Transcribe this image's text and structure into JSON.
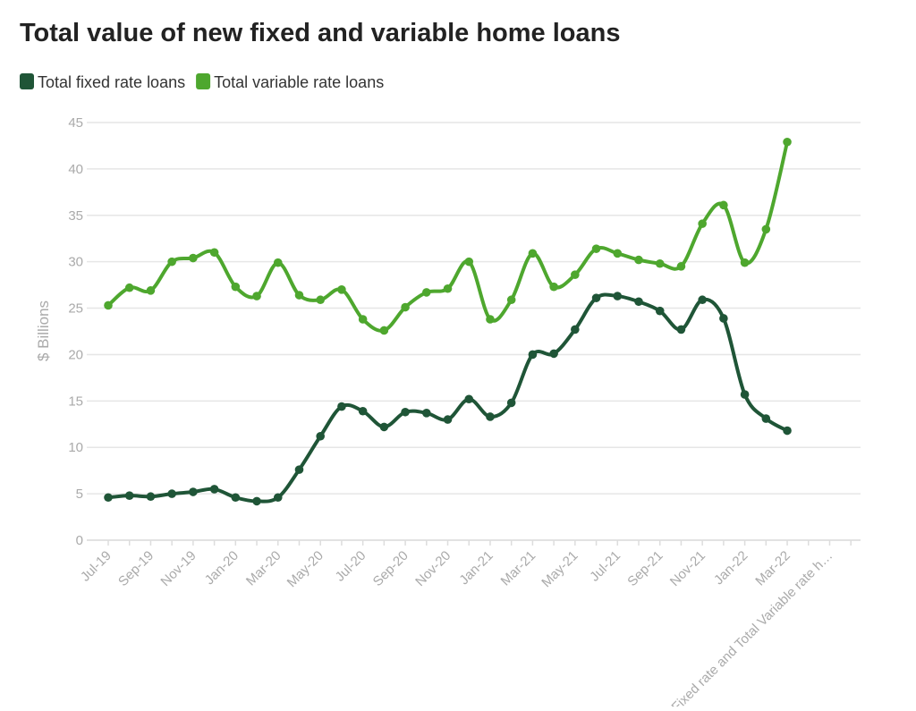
{
  "chart_data": {
    "type": "line",
    "title": "Total value of new fixed and variable home loans",
    "y_label": "$ Billions",
    "categories": [
      "Jul-19",
      null,
      "Sep-19",
      null,
      "Nov-19",
      null,
      "Jan-20",
      null,
      "Mar-20",
      null,
      "May-20",
      null,
      "Jul-20",
      null,
      "Sep-20",
      null,
      "Nov-20",
      null,
      "Jan-21",
      null,
      "Mar-21",
      null,
      "May-21",
      null,
      "Jul-21",
      null,
      "Sep-21",
      null,
      "Nov-21",
      null,
      "Jan-22",
      null,
      "Mar-22",
      null,
      "**Total Fixed rate and Total Variable rate h…",
      null
    ],
    "series": [
      {
        "name": "Total fixed rate loans",
        "color": "#1f5537",
        "values": [
          4.6,
          4.8,
          4.7,
          5.0,
          5.2,
          5.5,
          4.6,
          4.2,
          4.6,
          7.6,
          11.2,
          14.4,
          13.9,
          12.2,
          13.8,
          13.7,
          13.0,
          15.2,
          13.3,
          14.8,
          20.0,
          20.1,
          22.7,
          26.1,
          26.3,
          25.7,
          24.7,
          22.7,
          25.9,
          23.9,
          15.7,
          13.1,
          11.8,
          null,
          null,
          null
        ]
      },
      {
        "name": "Total variable rate loans",
        "color": "#4ea72e",
        "values": [
          25.3,
          27.2,
          26.9,
          30.0,
          30.4,
          31.0,
          27.3,
          26.3,
          29.9,
          26.4,
          25.9,
          27.0,
          23.8,
          22.6,
          25.1,
          26.7,
          27.1,
          30.0,
          23.8,
          25.9,
          30.9,
          27.3,
          28.6,
          31.4,
          30.9,
          30.2,
          29.8,
          29.5,
          34.1,
          36.1,
          29.9,
          33.5,
          42.9,
          null,
          null,
          null
        ]
      }
    ],
    "ylim": [
      0,
      45
    ],
    "yticks": [
      0,
      5,
      10,
      15,
      20,
      25,
      30,
      35,
      40,
      45
    ],
    "grid": true
  }
}
